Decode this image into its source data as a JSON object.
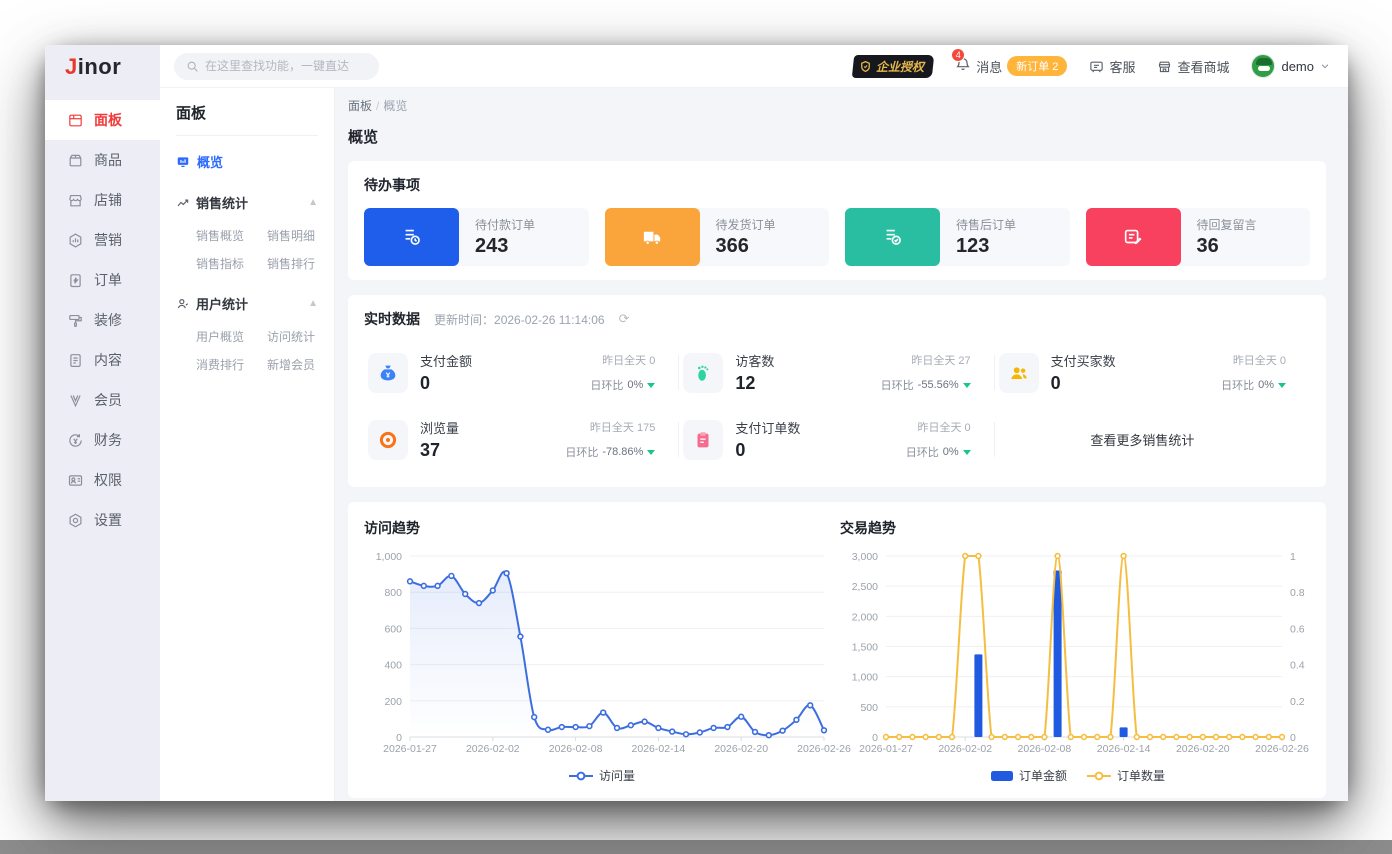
{
  "brand": {
    "logo_accent": "J",
    "logo_rest": "inor"
  },
  "topbar": {
    "search_placeholder": "在这里查找功能，一键直达",
    "license_badge": "企业授权",
    "messages_label": "消息",
    "messages_badge": "4",
    "new_order_pill": "新订单 2",
    "support_label": "客服",
    "shop_label": "查看商城",
    "user_name": "demo"
  },
  "sidebar": {
    "items": [
      {
        "label": "面板"
      },
      {
        "label": "商品"
      },
      {
        "label": "店铺"
      },
      {
        "label": "营销"
      },
      {
        "label": "订单"
      },
      {
        "label": "装修"
      },
      {
        "label": "内容"
      },
      {
        "label": "会员"
      },
      {
        "label": "财务"
      },
      {
        "label": "权限"
      },
      {
        "label": "设置"
      }
    ]
  },
  "submenu": {
    "title": "面板",
    "overview": "概览",
    "groups": [
      {
        "label": "销售统计",
        "items": [
          "销售概览",
          "销售明细",
          "销售指标",
          "销售排行"
        ]
      },
      {
        "label": "用户统计",
        "items": [
          "用户概览",
          "访问统计",
          "消费排行",
          "新增会员"
        ]
      }
    ]
  },
  "breadcrumb": {
    "root": "面板",
    "sep": "/",
    "current": "概览"
  },
  "page_title": "概览",
  "todo": {
    "title": "待办事项",
    "items": [
      {
        "label": "待付款订单",
        "value": "243",
        "color": "#1E5EEB"
      },
      {
        "label": "待发货订单",
        "value": "366",
        "color": "#F9A53C"
      },
      {
        "label": "待售后订单",
        "value": "123",
        "color": "#29BEA2"
      },
      {
        "label": "待回复留言",
        "value": "36",
        "color": "#F8415E"
      }
    ]
  },
  "realtime": {
    "title": "实时数据",
    "updated_label": "更新时间：",
    "updated_time": "2026-02-26 11:14:06",
    "yesterday_label": "昨日全天",
    "ratio_label": "日环比",
    "stats": [
      {
        "label": "支付金额",
        "value": "0",
        "yesterday": "0",
        "ratio": "0%"
      },
      {
        "label": "访客数",
        "value": "12",
        "yesterday": "27",
        "ratio": "-55.56%"
      },
      {
        "label": "支付买家数",
        "value": "0",
        "yesterday": "0",
        "ratio": "0%"
      },
      {
        "label": "浏览量",
        "value": "37",
        "yesterday": "175",
        "ratio": "-78.86%"
      },
      {
        "label": "支付订单数",
        "value": "0",
        "yesterday": "0",
        "ratio": "0%"
      }
    ],
    "more_link": "查看更多销售统计"
  },
  "chart_data": [
    {
      "type": "line",
      "title": "访问趋势",
      "legend": [
        "访问量"
      ],
      "x": [
        "2026-01-27",
        "2026-01-28",
        "2026-01-29",
        "2026-01-30",
        "2026-01-31",
        "2026-02-01",
        "2026-02-02",
        "2026-02-03",
        "2026-02-04",
        "2026-02-05",
        "2026-02-06",
        "2026-02-07",
        "2026-02-08",
        "2026-02-09",
        "2026-02-10",
        "2026-02-11",
        "2026-02-12",
        "2026-02-13",
        "2026-02-14",
        "2026-02-15",
        "2026-02-16",
        "2026-02-17",
        "2026-02-18",
        "2026-02-19",
        "2026-02-20",
        "2026-02-21",
        "2026-02-22",
        "2026-02-23",
        "2026-02-24",
        "2026-02-25",
        "2026-02-26"
      ],
      "series": [
        {
          "name": "访问量",
          "type": "line",
          "color": "#3D6EE0",
          "values": [
            860,
            835,
            835,
            890,
            790,
            740,
            810,
            905,
            555,
            110,
            40,
            55,
            55,
            60,
            135,
            50,
            65,
            85,
            50,
            30,
            15,
            25,
            50,
            55,
            112,
            28,
            10,
            35,
            95,
            175,
            37
          ]
        }
      ],
      "ylim": [
        0,
        1000
      ],
      "yticks": [
        "0",
        "200",
        "400",
        "600",
        "800",
        "1,000"
      ],
      "xtick_idx": [
        0,
        6,
        12,
        18,
        24,
        30
      ],
      "grid": true,
      "legend_position": "bottom"
    },
    {
      "type": "bar+line",
      "title": "交易趋势",
      "legend": [
        "订单金额",
        "订单数量"
      ],
      "x": [
        "2026-01-27",
        "2026-01-28",
        "2026-01-29",
        "2026-01-30",
        "2026-01-31",
        "2026-02-01",
        "2026-02-02",
        "2026-02-03",
        "2026-02-04",
        "2026-02-05",
        "2026-02-06",
        "2026-02-07",
        "2026-02-08",
        "2026-02-09",
        "2026-02-10",
        "2026-02-11",
        "2026-02-12",
        "2026-02-13",
        "2026-02-14",
        "2026-02-15",
        "2026-02-16",
        "2026-02-17",
        "2026-02-18",
        "2026-02-19",
        "2026-02-20",
        "2026-02-21",
        "2026-02-22",
        "2026-02-23",
        "2026-02-24",
        "2026-02-25",
        "2026-02-26"
      ],
      "series": [
        {
          "name": "订单金额",
          "type": "bar",
          "axis": "left",
          "color": "#1F5AE0",
          "values": [
            0,
            0,
            0,
            0,
            0,
            0,
            0,
            1370,
            0,
            0,
            0,
            0,
            0,
            2760,
            0,
            0,
            0,
            0,
            160,
            0,
            0,
            0,
            0,
            0,
            0,
            0,
            0,
            0,
            0,
            0,
            0
          ]
        },
        {
          "name": "订单数量",
          "type": "line",
          "axis": "right",
          "color": "#F5BE42",
          "values": [
            0,
            0,
            0,
            0,
            0,
            0,
            1,
            1,
            0,
            0,
            0,
            0,
            0,
            1,
            0,
            0,
            0,
            0,
            1,
            0,
            0,
            0,
            0,
            0,
            0,
            0,
            0,
            0,
            0,
            0,
            0
          ]
        }
      ],
      "ylim_left": [
        0,
        3000
      ],
      "ylim_right": [
        0,
        1
      ],
      "yticks_left": [
        "0",
        "500",
        "1,000",
        "1,500",
        "2,000",
        "2,500",
        "3,000"
      ],
      "yticks_right": [
        "0",
        "0.2",
        "0.4",
        "0.6",
        "0.8",
        "1"
      ],
      "xtick_idx": [
        0,
        6,
        12,
        18,
        24,
        30
      ],
      "grid": true,
      "legend_position": "bottom"
    }
  ]
}
